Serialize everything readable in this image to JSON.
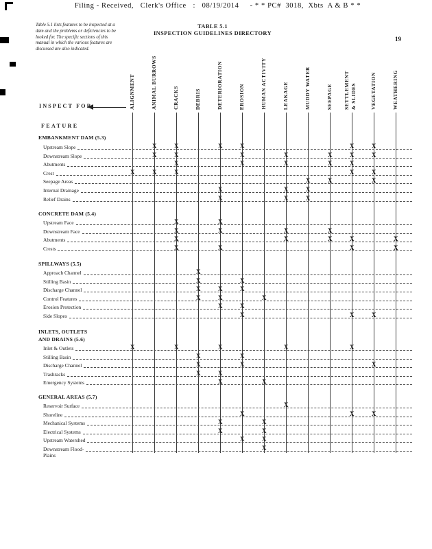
{
  "stamp": {
    "filing_line": "Filing - Received,   Clerk's Office   :   08/19/2014     - * * PC#  3018,  Xbts  A & B * *"
  },
  "page": {
    "number": "19"
  },
  "title": {
    "line1": "TABLE 5.1",
    "line2": "INSPECTION GUIDELINES DIRECTORY"
  },
  "intro_note": "Table 5.1 lists features to be inspected at a dam and the problems or deficiencies to be looked for. The specific sections of this manual in which the various features are discussed are also indicated.",
  "labels": {
    "inspect_for": "INSPECT FOR",
    "feature": "FEATURE"
  },
  "mark_glyph": "X",
  "columns": [
    "ALIGNMENT",
    "ANIMAL BURROWS",
    "CRACKS",
    "DEBRIS",
    "DETERIORATION",
    "EROSION",
    "HUMAN ACTIVITY",
    "LEAKAGE",
    "MUDDY WATER",
    "SEEPAGE",
    "SETTLEMENT\n& SLIDES",
    "VEGETATION",
    "WEATHERING"
  ],
  "sections": [
    {
      "title": "EMBANKMENT DAM (5.3)",
      "rows": [
        {
          "label": "Upstream Slope",
          "marks": [
            0,
            1,
            1,
            0,
            1,
            1,
            0,
            0,
            0,
            0,
            1,
            1,
            0
          ]
        },
        {
          "label": "Downstream Slope",
          "marks": [
            0,
            1,
            1,
            0,
            0,
            1,
            0,
            1,
            0,
            1,
            1,
            1,
            0
          ]
        },
        {
          "label": "Abutments",
          "marks": [
            0,
            0,
            1,
            0,
            0,
            1,
            0,
            1,
            0,
            1,
            1,
            0,
            0
          ]
        },
        {
          "label": "Crest",
          "marks": [
            1,
            1,
            1,
            0,
            0,
            0,
            0,
            0,
            0,
            0,
            1,
            1,
            0
          ]
        },
        {
          "label": "Seepage Areas",
          "marks": [
            0,
            0,
            0,
            0,
            0,
            0,
            0,
            0,
            1,
            1,
            0,
            1,
            0
          ]
        },
        {
          "label": "Internal Drainage",
          "marks": [
            0,
            0,
            0,
            0,
            1,
            0,
            0,
            1,
            1,
            0,
            0,
            0,
            0
          ]
        },
        {
          "label": "Relief Drains",
          "marks": [
            0,
            0,
            0,
            0,
            1,
            0,
            0,
            1,
            1,
            0,
            0,
            0,
            0
          ]
        }
      ]
    },
    {
      "title": "CONCRETE DAM (5.4)",
      "rows": [
        {
          "label": "Upstream Face",
          "marks": [
            0,
            0,
            1,
            0,
            1,
            0,
            0,
            0,
            0,
            0,
            0,
            0,
            0
          ]
        },
        {
          "label": "Downstream Face",
          "marks": [
            0,
            0,
            1,
            0,
            1,
            0,
            0,
            1,
            0,
            1,
            0,
            0,
            0
          ]
        },
        {
          "label": "Abutments",
          "marks": [
            0,
            0,
            1,
            0,
            0,
            0,
            0,
            1,
            0,
            1,
            1,
            0,
            1
          ]
        },
        {
          "label": "Crests",
          "marks": [
            0,
            0,
            1,
            0,
            1,
            0,
            0,
            0,
            0,
            0,
            1,
            0,
            1
          ]
        }
      ]
    },
    {
      "title": "SPILLWAYS (5.5)",
      "rows": [
        {
          "label": "Approach Channel",
          "marks": [
            0,
            0,
            0,
            1,
            0,
            0,
            0,
            0,
            0,
            0,
            0,
            0,
            0
          ]
        },
        {
          "label": "Stilling Basin",
          "marks": [
            0,
            0,
            0,
            1,
            0,
            1,
            0,
            0,
            0,
            0,
            0,
            0,
            0
          ]
        },
        {
          "label": "Discharge Channel",
          "marks": [
            0,
            0,
            0,
            1,
            1,
            1,
            0,
            0,
            0,
            0,
            0,
            0,
            0
          ]
        },
        {
          "label": "Control Features",
          "marks": [
            0,
            0,
            0,
            1,
            1,
            0,
            1,
            0,
            0,
            0,
            0,
            0,
            0
          ]
        },
        {
          "label": "Erosion Protection",
          "marks": [
            0,
            0,
            0,
            0,
            1,
            1,
            0,
            0,
            0,
            0,
            0,
            0,
            0
          ]
        },
        {
          "label": "Side Slopes",
          "marks": [
            0,
            0,
            0,
            0,
            0,
            1,
            0,
            0,
            0,
            0,
            1,
            1,
            0
          ]
        }
      ]
    },
    {
      "title": "INLETS, OUTLETS\nAND DRAINS (5.6)",
      "rows": [
        {
          "label": "Inlet & Outlets",
          "marks": [
            1,
            0,
            1,
            0,
            1,
            0,
            0,
            1,
            0,
            0,
            1,
            0,
            0
          ]
        },
        {
          "label": "Stilling Basin",
          "marks": [
            0,
            0,
            0,
            1,
            0,
            1,
            0,
            0,
            0,
            0,
            0,
            0,
            0
          ]
        },
        {
          "label": "Discharge Channel",
          "marks": [
            0,
            0,
            0,
            1,
            0,
            1,
            0,
            0,
            0,
            0,
            0,
            1,
            0
          ]
        },
        {
          "label": "Trashracks",
          "marks": [
            0,
            0,
            0,
            1,
            1,
            0,
            0,
            0,
            0,
            0,
            0,
            0,
            0
          ]
        },
        {
          "label": "Emergency Systems",
          "marks": [
            0,
            0,
            0,
            0,
            1,
            0,
            1,
            0,
            0,
            0,
            0,
            0,
            0
          ]
        }
      ]
    },
    {
      "title": "GENERAL AREAS (5.7)",
      "rows": [
        {
          "label": "Reservoir Surface",
          "marks": [
            0,
            0,
            0,
            0,
            0,
            0,
            0,
            1,
            0,
            0,
            0,
            0,
            0
          ]
        },
        {
          "label": "Shoreline",
          "marks": [
            0,
            0,
            0,
            0,
            0,
            1,
            0,
            0,
            0,
            0,
            1,
            1,
            0
          ]
        },
        {
          "label": "Mechanical Systems",
          "marks": [
            0,
            0,
            0,
            0,
            1,
            0,
            1,
            0,
            0,
            0,
            0,
            0,
            0
          ]
        },
        {
          "label": "Electrical Systems",
          "marks": [
            0,
            0,
            0,
            0,
            1,
            0,
            1,
            0,
            0,
            0,
            0,
            0,
            0
          ]
        },
        {
          "label": "Upstream Watershed",
          "marks": [
            0,
            0,
            0,
            0,
            0,
            1,
            1,
            0,
            0,
            0,
            0,
            0,
            0
          ]
        },
        {
          "label": "Downstream Flood-\nPlains",
          "marks": [
            0,
            0,
            0,
            0,
            0,
            0,
            1,
            0,
            0,
            0,
            0,
            0,
            0
          ]
        }
      ]
    }
  ]
}
